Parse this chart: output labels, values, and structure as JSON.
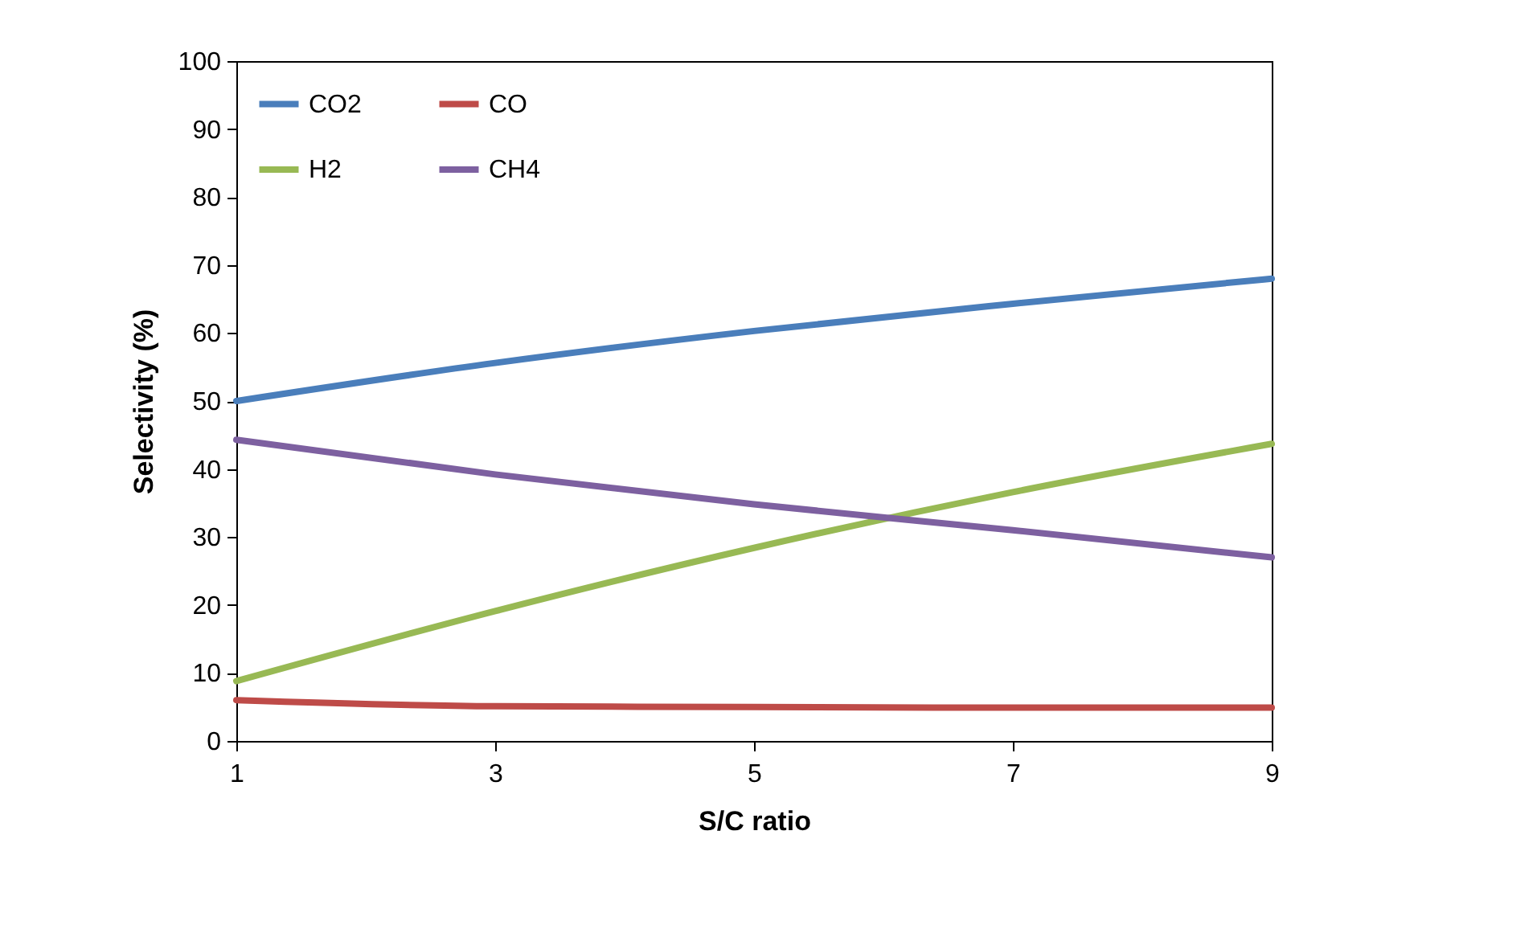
{
  "chart_data": {
    "type": "line",
    "xlabel": "S/C ratio",
    "ylabel": "Selectivity (%)",
    "x": [
      1,
      3,
      5,
      7,
      9
    ],
    "series": [
      {
        "name": "CO2",
        "color": "#4a7ebb",
        "values": [
          50,
          55.6,
          60.3,
          64.3,
          68
        ]
      },
      {
        "name": "CO",
        "color": "#be4b48",
        "values": [
          6,
          5.1,
          5,
          4.9,
          4.9
        ]
      },
      {
        "name": "H2",
        "color": "#98b954",
        "values": [
          8.8,
          19.1,
          28.4,
          36.6,
          43.7
        ]
      },
      {
        "name": "CH4",
        "color": "#7d60a0",
        "values": [
          44.3,
          39.2,
          34.8,
          31,
          27
        ]
      }
    ],
    "xlim": [
      1,
      9
    ],
    "xticks": [
      1,
      3,
      5,
      7,
      9
    ],
    "ylim": [
      0,
      100
    ],
    "yticks": [
      0,
      10,
      20,
      30,
      40,
      50,
      60,
      70,
      80,
      90,
      100
    ],
    "grid": false,
    "legend": "top left",
    "marker": "none",
    "line_style": "solid"
  }
}
